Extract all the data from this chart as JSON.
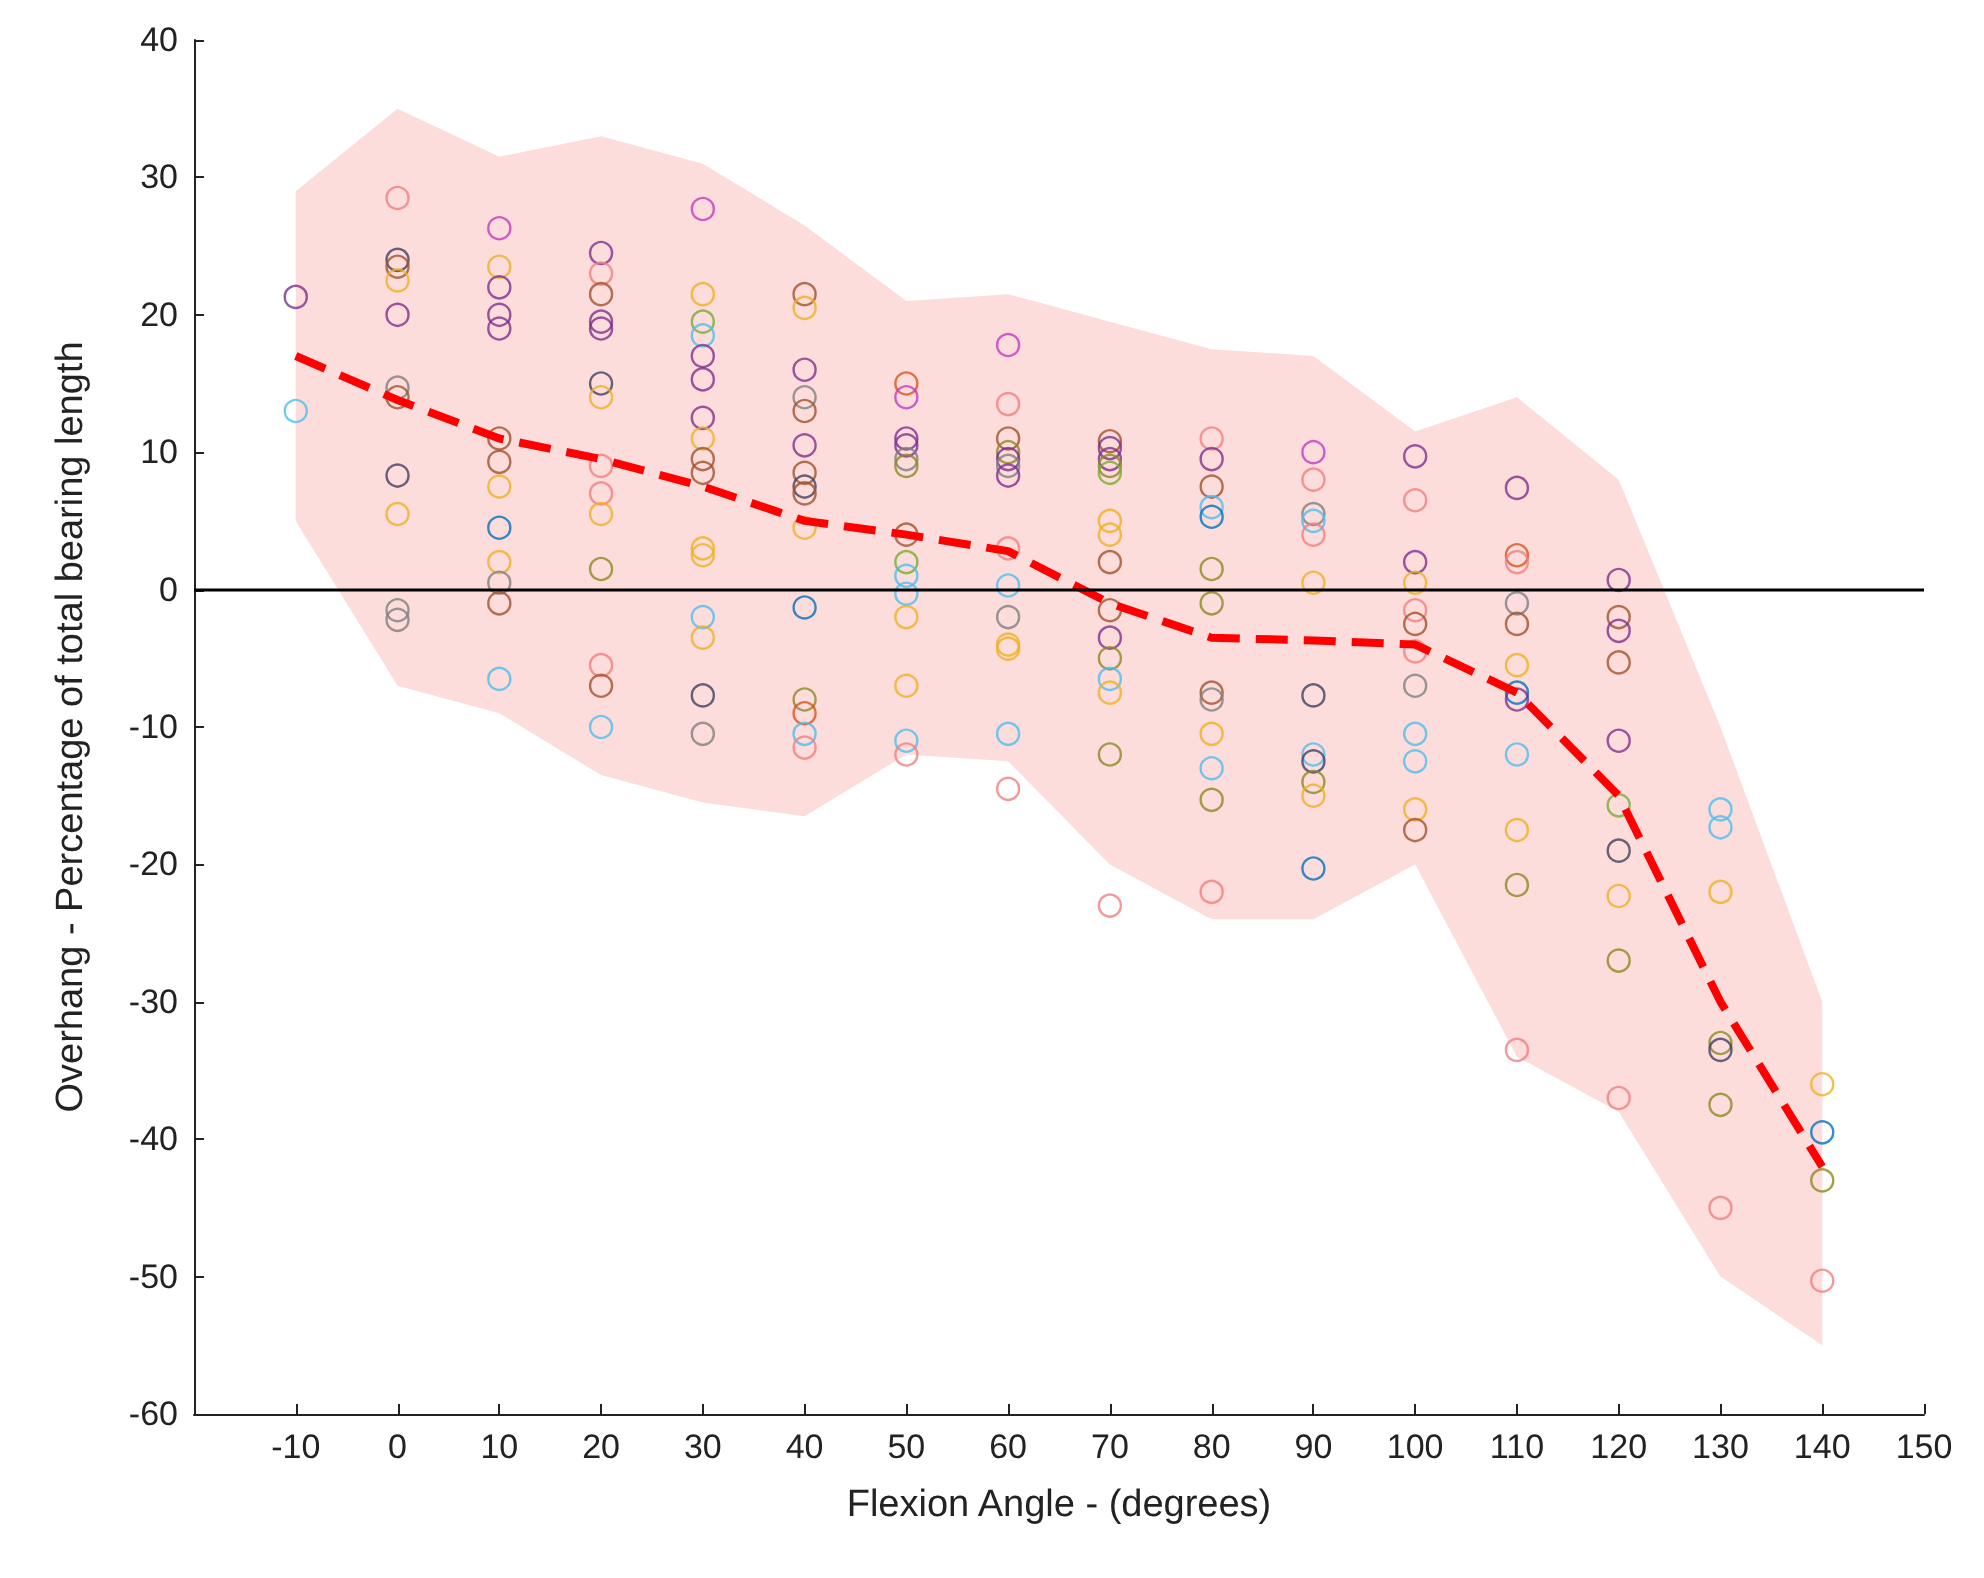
{
  "chart_data": {
    "type": "scatter",
    "xlabel": "Flexion Angle - (degrees)",
    "ylabel": "Overhang - Percentage of total bearing length",
    "xlim": [
      -20,
      150
    ],
    "xticks": [
      -10,
      0,
      10,
      20,
      30,
      40,
      50,
      60,
      70,
      80,
      90,
      100,
      110,
      120,
      130,
      140,
      150
    ],
    "ylim": [
      -60,
      40
    ],
    "yticks": [
      -60,
      -50,
      -40,
      -30,
      -20,
      -10,
      0,
      10,
      20,
      30,
      40
    ],
    "grid": false,
    "marker": "circle",
    "ref_lines": [
      {
        "axis": "y",
        "value": 0,
        "color": "#000000"
      }
    ],
    "series": [
      {
        "x": [
          -10,
          -10,
          0,
          0,
          0,
          0,
          0,
          0,
          0,
          0,
          0,
          0,
          0,
          10,
          10,
          10,
          10,
          10,
          10,
          10,
          10,
          10,
          10,
          10,
          10,
          10,
          20,
          20,
          20,
          20,
          20,
          20,
          20,
          20,
          20,
          20,
          20,
          20,
          20,
          20,
          30,
          30,
          30,
          30,
          30,
          30,
          30,
          30,
          30,
          30,
          30,
          30,
          30,
          30,
          30,
          30,
          40,
          40,
          40,
          40,
          40,
          40,
          40,
          40,
          40,
          40,
          40,
          40,
          40,
          40,
          40,
          50,
          50,
          50,
          50,
          50,
          50,
          50,
          50,
          50,
          50,
          50,
          50,
          50,
          50,
          60,
          60,
          60,
          60,
          60,
          60,
          60,
          60,
          60,
          60,
          60,
          60,
          60,
          60,
          70,
          70,
          70,
          70,
          70,
          70,
          70,
          70,
          70,
          70,
          70,
          70,
          70,
          70,
          70,
          80,
          80,
          80,
          80,
          80,
          80,
          80,
          80,
          80,
          80,
          80,
          80,
          80,
          90,
          90,
          90,
          90,
          90,
          90,
          90,
          90,
          90,
          90,
          90,
          90,
          100,
          100,
          100,
          100,
          100,
          100,
          100,
          100,
          100,
          100,
          100,
          100,
          110,
          110,
          110,
          110,
          110,
          110,
          110,
          110,
          110,
          110,
          110,
          110,
          120,
          120,
          120,
          120,
          120,
          120,
          120,
          120,
          120,
          120,
          130,
          130,
          130,
          130,
          130,
          130,
          130,
          140,
          140,
          140,
          140
        ],
        "values": [
          21.3,
          13,
          28.5,
          24,
          23.5,
          22.5,
          20,
          14.7,
          14,
          8.3,
          5.5,
          -1.5,
          -2.2,
          26.3,
          23.5,
          22,
          20,
          19,
          11,
          9.3,
          7.5,
          4.5,
          2,
          0.5,
          -1,
          -6.5,
          24.5,
          23,
          21.5,
          19.5,
          19,
          15,
          14,
          9,
          7,
          5.5,
          1.5,
          -5.5,
          -7,
          -10,
          27.7,
          21.5,
          19.5,
          18.5,
          17,
          15.3,
          12.5,
          11,
          9.5,
          8.5,
          3,
          2.5,
          -2,
          -3.5,
          -7.7,
          -10.5,
          21.5,
          20.5,
          16,
          14,
          13,
          10.5,
          8.5,
          7.5,
          7,
          4.5,
          -1.3,
          -8,
          -9,
          -10.5,
          -11.5,
          15,
          14,
          11,
          10.5,
          9.5,
          9,
          4,
          2,
          1,
          -0.3,
          -2,
          -7,
          -11,
          -12,
          17.8,
          13.5,
          11,
          10,
          9.5,
          9,
          8.3,
          3,
          0.3,
          -2,
          -4,
          -4.3,
          -10.5,
          -14.5,
          10.8,
          10.3,
          9.5,
          9,
          8.5,
          5,
          4,
          2,
          -1.5,
          -3.5,
          -5,
          -6.5,
          -7.5,
          -12,
          -23,
          11,
          9.5,
          7.5,
          6,
          5.3,
          1.5,
          -1,
          -7.5,
          -8,
          -10.5,
          -13,
          -15.3,
          -22,
          10,
          8,
          5.5,
          5,
          4,
          0.5,
          -7.7,
          -12,
          -12.5,
          -14,
          -15,
          -20.3,
          9.7,
          6.5,
          2,
          0.5,
          -1.5,
          -2.5,
          -4.5,
          -7,
          -10.5,
          -12.5,
          -16,
          -17.5,
          7.4,
          2.5,
          2,
          -1,
          -2.5,
          -5.5,
          -7.5,
          -8,
          -12,
          -17.5,
          -21.5,
          -33.5,
          0.7,
          -2,
          -3,
          -5.3,
          -11,
          -15.7,
          -19,
          -22.3,
          -27,
          -37,
          -16,
          -17.3,
          -22,
          -33,
          -33.5,
          -37.5,
          -45,
          -36,
          -39.5,
          -43,
          -50.3
        ],
        "colors": [
          "#7e2f8e",
          "#4dbeee",
          "#f08080",
          "#404060",
          "#a0522d",
          "#edb120",
          "#7e2f8e",
          "#808080",
          "#a0522d",
          "#404060",
          "#edb120",
          "#808080",
          "#808080",
          "#c03cc0",
          "#edb120",
          "#7e2f8e",
          "#7e2f8e",
          "#7e2f8e",
          "#a0522d",
          "#a0522d",
          "#edb120",
          "#0072bd",
          "#edb120",
          "#808080",
          "#a0522d",
          "#4dbeee",
          "#7e2f8e",
          "#f08080",
          "#a0522d",
          "#7e2f8e",
          "#7e2f8e",
          "#404060",
          "#edb120",
          "#f08080",
          "#f08080",
          "#edb120",
          "#8a8a20",
          "#f08080",
          "#a0522d",
          "#4dbeee",
          "#c03cc0",
          "#edb120",
          "#77ac30",
          "#4dbeee",
          "#7e2f8e",
          "#7e2f8e",
          "#7e2f8e",
          "#edb120",
          "#a0522d",
          "#a0522d",
          "#edb120",
          "#edb120",
          "#4dbeee",
          "#edb120",
          "#404060",
          "#808080",
          "#a0522d",
          "#edb120",
          "#7e2f8e",
          "#808080",
          "#a0522d",
          "#7e2f8e",
          "#a0522d",
          "#404060",
          "#a0522d",
          "#edb120",
          "#0072bd",
          "#8a8a20",
          "#d95319",
          "#4dbeee",
          "#f08080",
          "#d95319",
          "#c03cc0",
          "#7e2f8e",
          "#7e2f8e",
          "#808080",
          "#8a8a20",
          "#a0522d",
          "#77ac30",
          "#4dbeee",
          "#4dbeee",
          "#edb120",
          "#edb120",
          "#4dbeee",
          "#f08080",
          "#c03cc0",
          "#f08080",
          "#a0522d",
          "#8a8a20",
          "#7e2f8e",
          "#808080",
          "#7e2f8e",
          "#f08080",
          "#4dbeee",
          "#808080",
          "#edb120",
          "#edb120",
          "#4dbeee",
          "#f08080",
          "#a0522d",
          "#7e2f8e",
          "#7e2f8e",
          "#8a8a20",
          "#77ac30",
          "#edb120",
          "#edb120",
          "#a0522d",
          "#a0522d",
          "#7e2f8e",
          "#8a8a20",
          "#4dbeee",
          "#edb120",
          "#8a8a20",
          "#f08080",
          "#f08080",
          "#7e2f8e",
          "#a0522d",
          "#4dbeee",
          "#0072bd",
          "#8a8a20",
          "#8a8a20",
          "#a0522d",
          "#808080",
          "#edb120",
          "#4dbeee",
          "#8a8a20",
          "#f08080",
          "#c03cc0",
          "#f08080",
          "#808080",
          "#4dbeee",
          "#f08080",
          "#edb120",
          "#404060",
          "#4dbeee",
          "#404060",
          "#8a8a20",
          "#edb120",
          "#0072bd",
          "#7e2f8e",
          "#f08080",
          "#7e2f8e",
          "#edb120",
          "#f08080",
          "#a0522d",
          "#f08080",
          "#808080",
          "#4dbeee",
          "#4dbeee",
          "#edb120",
          "#a0522d",
          "#7e2f8e",
          "#d95319",
          "#f08080",
          "#808080",
          "#a0522d",
          "#edb120",
          "#0072bd",
          "#7e2f8e",
          "#4dbeee",
          "#edb120",
          "#8a8a20",
          "#f08080",
          "#7e2f8e",
          "#a0522d",
          "#7e2f8e",
          "#a0522d",
          "#7e2f8e",
          "#77ac30",
          "#404060",
          "#edb120",
          "#8a8a20",
          "#f08080",
          "#4dbeee",
          "#4dbeee",
          "#edb120",
          "#8a8a20",
          "#404060",
          "#8a8a20",
          "#f08080",
          "#edb120",
          "#0072bd",
          "#8a8a20",
          "#f08080"
        ]
      },
      {
        "type": "line",
        "color": "#ff0000",
        "line_style": "dashed",
        "marker": "none",
        "x": [
          -10,
          0,
          10,
          20,
          30,
          40,
          50,
          60,
          70,
          80,
          90,
          100,
          110,
          120,
          130,
          140
        ],
        "values": [
          17,
          13.8,
          11,
          9.5,
          7.5,
          5,
          4,
          2.8,
          -1,
          -3.5,
          -3.7,
          -4,
          -7.5,
          -15,
          -30,
          -42
        ],
        "upper": [
          29,
          35,
          31.5,
          33,
          31,
          26.5,
          21,
          21.5,
          19.5,
          17.5,
          17,
          11.5,
          14,
          8,
          -10,
          -30
        ],
        "lower": [
          5,
          -7,
          -9,
          -13.5,
          -15.5,
          -16.5,
          -12,
          -12.5,
          -20,
          -24,
          -24,
          -20,
          -34,
          -38,
          -50,
          -55
        ]
      }
    ]
  }
}
